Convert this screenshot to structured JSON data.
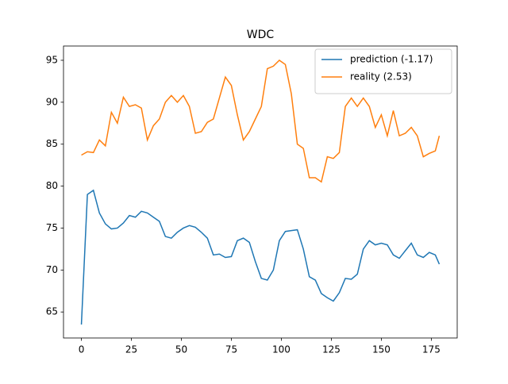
{
  "chart_data": {
    "type": "line",
    "title": "WDC",
    "x": [
      0,
      3,
      6,
      9,
      12,
      15,
      18,
      21,
      24,
      27,
      30,
      33,
      36,
      39,
      42,
      45,
      48,
      51,
      54,
      57,
      60,
      63,
      66,
      69,
      72,
      75,
      78,
      81,
      84,
      87,
      90,
      93,
      96,
      99,
      102,
      105,
      108,
      111,
      114,
      117,
      120,
      123,
      126,
      129,
      132,
      135,
      138,
      141,
      144,
      147,
      150,
      153,
      156,
      159,
      162,
      165,
      168,
      171,
      174,
      177,
      179
    ],
    "series": [
      {
        "name": "prediction (-1.17)",
        "color": "#1f77b4",
        "values": [
          63.5,
          79.0,
          79.5,
          76.8,
          75.5,
          74.9,
          75.0,
          75.6,
          76.5,
          76.3,
          77.0,
          76.8,
          76.3,
          75.8,
          74.0,
          73.8,
          74.5,
          75.0,
          75.3,
          75.1,
          74.5,
          73.8,
          71.8,
          71.9,
          71.5,
          71.6,
          73.5,
          73.8,
          73.3,
          71.0,
          69.0,
          68.8,
          70.0,
          73.5,
          74.6,
          74.7,
          74.8,
          72.5,
          69.2,
          68.8,
          67.2,
          66.7,
          66.3,
          67.3,
          69.0,
          68.9,
          69.5,
          72.5,
          73.5,
          73.0,
          73.2,
          73.0,
          71.8,
          71.4,
          72.3,
          73.2,
          71.8,
          71.5,
          72.1,
          71.8,
          70.7
        ]
      },
      {
        "name": "reality (2.53)",
        "color": "#ff7f0e",
        "values": [
          83.7,
          84.1,
          84.0,
          85.5,
          84.8,
          88.8,
          87.5,
          90.6,
          89.5,
          89.7,
          89.3,
          85.5,
          87.2,
          88.0,
          90.0,
          90.8,
          90.0,
          90.8,
          89.5,
          86.3,
          86.5,
          87.6,
          88.0,
          90.5,
          93.0,
          92.0,
          88.5,
          85.5,
          86.5,
          88.0,
          89.5,
          94.0,
          94.3,
          95.0,
          94.5,
          91.0,
          85.0,
          84.5,
          81.0,
          81.0,
          80.5,
          83.5,
          83.3,
          84.0,
          89.5,
          90.5,
          89.5,
          90.5,
          89.5,
          87.0,
          88.5,
          86.0,
          89.0,
          86.0,
          86.3,
          87.0,
          86.0,
          83.5,
          83.9,
          84.2,
          86.0
        ]
      }
    ],
    "xlim": [
      -8.95,
      187.95
    ],
    "ylim": [
      61.9,
      96.7
    ],
    "xticks": [
      0,
      25,
      50,
      75,
      100,
      125,
      150,
      175
    ],
    "yticks": [
      65,
      70,
      75,
      80,
      85,
      90,
      95
    ],
    "grid": false,
    "legend": "upper right"
  }
}
